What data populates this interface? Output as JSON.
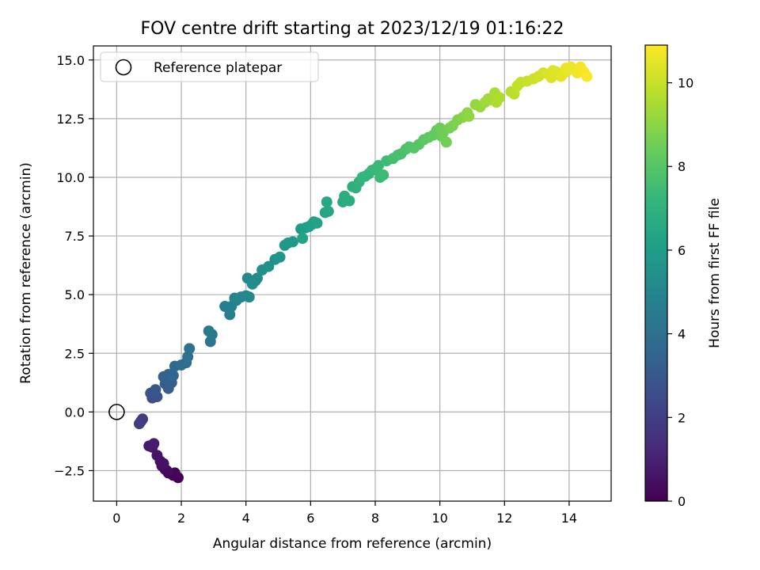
{
  "chart_data": {
    "type": "scatter",
    "title": "FOV centre drift starting at 2023/12/19 01:16:22",
    "xlabel": "Angular distance from reference (arcmin)",
    "ylabel": "Rotation from reference (arcmin)",
    "xlim": [
      -0.72,
      15.3
    ],
    "ylim": [
      -3.8,
      15.6
    ],
    "xticks": [
      0,
      2,
      4,
      6,
      8,
      10,
      12,
      14
    ],
    "xtick_labels": [
      "0",
      "2",
      "4",
      "6",
      "8",
      "10",
      "12",
      "14"
    ],
    "yticks": [
      -2.5,
      0.0,
      2.5,
      5.0,
      7.5,
      10.0,
      12.5,
      15.0
    ],
    "ytick_labels": [
      "−2.5",
      "0.0",
      "2.5",
      "5.0",
      "7.5",
      "10.0",
      "12.5",
      "15.0"
    ],
    "grid": true,
    "legend": {
      "placement": "top-left",
      "entries": [
        "Reference platepar"
      ]
    },
    "reference_point": {
      "x": 0,
      "y": 0
    },
    "colorbar": {
      "label": "Hours from first FF file",
      "range": [
        0,
        10.9
      ],
      "ticks": [
        0,
        2,
        4,
        6,
        8,
        10
      ],
      "tick_labels": [
        "0",
        "2",
        "4",
        "6",
        "8",
        "10"
      ],
      "colormap": "viridis"
    },
    "series": [
      {
        "points": [
          [
            1.9,
            -2.8
          ],
          [
            1.75,
            -2.7
          ],
          [
            1.6,
            -2.6
          ],
          [
            1.5,
            -2.45
          ],
          [
            1.4,
            -2.3
          ],
          [
            1.35,
            -2.1
          ],
          [
            1.25,
            -1.85
          ],
          [
            1.1,
            -1.5
          ],
          [
            1.0,
            -1.45
          ],
          [
            1.15,
            -1.35
          ],
          [
            1.8,
            -2.6
          ],
          [
            1.55,
            -2.5
          ],
          [
            1.45,
            -2.2
          ],
          [
            0.75,
            -0.4
          ],
          [
            0.8,
            -0.3
          ],
          [
            0.7,
            -0.5
          ],
          [
            1.1,
            0.6
          ],
          [
            1.25,
            0.65
          ],
          [
            1.05,
            0.8
          ],
          [
            1.2,
            0.95
          ],
          [
            1.5,
            1.2
          ],
          [
            1.6,
            1.0
          ],
          [
            1.7,
            1.25
          ],
          [
            1.45,
            1.5
          ],
          [
            1.6,
            1.6
          ],
          [
            1.75,
            1.55
          ],
          [
            1.8,
            1.95
          ],
          [
            2.0,
            2.0
          ],
          [
            2.15,
            2.1
          ],
          [
            2.2,
            2.35
          ],
          [
            2.25,
            2.7
          ],
          [
            2.9,
            3.0
          ],
          [
            2.95,
            3.3
          ],
          [
            2.85,
            3.45
          ],
          [
            3.35,
            4.5
          ],
          [
            3.5,
            4.15
          ],
          [
            3.55,
            4.5
          ],
          [
            3.7,
            4.75
          ],
          [
            3.65,
            4.85
          ],
          [
            3.85,
            4.9
          ],
          [
            4.0,
            4.95
          ],
          [
            4.1,
            4.9
          ],
          [
            4.05,
            5.7
          ],
          [
            4.3,
            5.6
          ],
          [
            4.35,
            5.7
          ],
          [
            4.2,
            5.45
          ],
          [
            4.5,
            6.05
          ],
          [
            4.7,
            6.2
          ],
          [
            4.9,
            6.5
          ],
          [
            5.05,
            6.6
          ],
          [
            5.2,
            7.1
          ],
          [
            5.3,
            7.2
          ],
          [
            5.45,
            7.25
          ],
          [
            5.7,
            7.8
          ],
          [
            5.85,
            7.85
          ],
          [
            5.95,
            7.9
          ],
          [
            6.05,
            8.0
          ],
          [
            6.1,
            8.1
          ],
          [
            6.2,
            8.05
          ],
          [
            5.75,
            7.4
          ],
          [
            6.45,
            8.5
          ],
          [
            6.55,
            8.55
          ],
          [
            6.5,
            8.95
          ],
          [
            7.0,
            8.95
          ],
          [
            7.05,
            9.2
          ],
          [
            7.2,
            9.0
          ],
          [
            7.3,
            9.6
          ],
          [
            7.4,
            9.55
          ],
          [
            7.5,
            9.8
          ],
          [
            7.6,
            10.0
          ],
          [
            7.7,
            10.05
          ],
          [
            7.8,
            10.15
          ],
          [
            7.9,
            10.3
          ],
          [
            8.0,
            10.35
          ],
          [
            8.1,
            10.5
          ],
          [
            8.15,
            10.0
          ],
          [
            8.25,
            10.1
          ],
          [
            8.35,
            10.7
          ],
          [
            8.55,
            10.8
          ],
          [
            8.7,
            10.95
          ],
          [
            8.8,
            11.0
          ],
          [
            8.95,
            11.2
          ],
          [
            9.05,
            11.3
          ],
          [
            9.2,
            11.25
          ],
          [
            9.35,
            11.4
          ],
          [
            9.5,
            11.6
          ],
          [
            9.65,
            11.7
          ],
          [
            9.8,
            11.8
          ],
          [
            9.9,
            12.0
          ],
          [
            10.0,
            12.1
          ],
          [
            10.05,
            11.75
          ],
          [
            10.1,
            11.9
          ],
          [
            10.2,
            11.5
          ],
          [
            10.3,
            12.1
          ],
          [
            10.4,
            12.2
          ],
          [
            10.55,
            12.45
          ],
          [
            10.7,
            12.55
          ],
          [
            10.85,
            12.75
          ],
          [
            10.9,
            12.6
          ],
          [
            11.1,
            13.1
          ],
          [
            11.25,
            13.0
          ],
          [
            11.4,
            13.2
          ],
          [
            11.5,
            13.35
          ],
          [
            11.6,
            13.3
          ],
          [
            11.7,
            13.6
          ],
          [
            11.75,
            13.2
          ],
          [
            11.85,
            13.4
          ],
          [
            12.2,
            13.65
          ],
          [
            12.3,
            13.55
          ],
          [
            12.4,
            13.9
          ],
          [
            12.5,
            14.05
          ],
          [
            12.7,
            14.1
          ],
          [
            12.9,
            14.2
          ],
          [
            13.05,
            14.3
          ],
          [
            13.2,
            14.45
          ],
          [
            13.35,
            14.4
          ],
          [
            13.5,
            14.55
          ],
          [
            13.6,
            14.5
          ],
          [
            13.75,
            14.3
          ],
          [
            13.85,
            14.45
          ],
          [
            13.95,
            14.55
          ],
          [
            14.05,
            14.7
          ],
          [
            14.15,
            14.6
          ],
          [
            14.25,
            14.45
          ],
          [
            14.35,
            14.7
          ],
          [
            14.45,
            14.5
          ],
          [
            14.55,
            14.3
          ],
          [
            13.45,
            14.25
          ],
          [
            13.9,
            14.65
          ]
        ],
        "hours": [
          0.0,
          0.1,
          0.2,
          0.3,
          0.4,
          0.5,
          0.6,
          0.7,
          0.8,
          0.9,
          0.15,
          0.35,
          0.55,
          1.8,
          1.9,
          2.0,
          2.6,
          2.7,
          2.8,
          2.9,
          3.1,
          3.2,
          3.3,
          3.4,
          3.5,
          3.6,
          3.7,
          3.8,
          3.9,
          4.0,
          4.1,
          4.3,
          4.4,
          4.45,
          4.7,
          4.75,
          4.8,
          4.9,
          4.95,
          5.0,
          5.05,
          5.1,
          5.15,
          5.2,
          5.25,
          5.3,
          5.4,
          5.5,
          5.6,
          5.65,
          5.75,
          5.8,
          5.85,
          6.0,
          6.05,
          6.1,
          6.15,
          6.2,
          6.25,
          6.3,
          6.4,
          6.45,
          6.5,
          6.7,
          6.75,
          6.8,
          6.9,
          6.95,
          7.0,
          7.1,
          7.15,
          7.2,
          7.25,
          7.3,
          7.35,
          7.4,
          7.45,
          7.5,
          7.6,
          7.7,
          7.75,
          7.8,
          7.9,
          7.95,
          8.0,
          8.1,
          8.2,
          8.25,
          8.3,
          8.4,
          8.45,
          8.5,
          8.55,
          8.6,
          8.7,
          8.8,
          8.9,
          9.0,
          9.05,
          9.15,
          9.2,
          9.3,
          9.35,
          9.4,
          9.5,
          9.55,
          9.6,
          9.75,
          9.8,
          9.9,
          9.95,
          10.0,
          10.1,
          10.15,
          10.2,
          10.3,
          10.35,
          10.4,
          10.45,
          10.5,
          10.55,
          10.6,
          10.65,
          10.7,
          10.75,
          10.8,
          10.85,
          10.4,
          10.6
        ]
      }
    ]
  }
}
